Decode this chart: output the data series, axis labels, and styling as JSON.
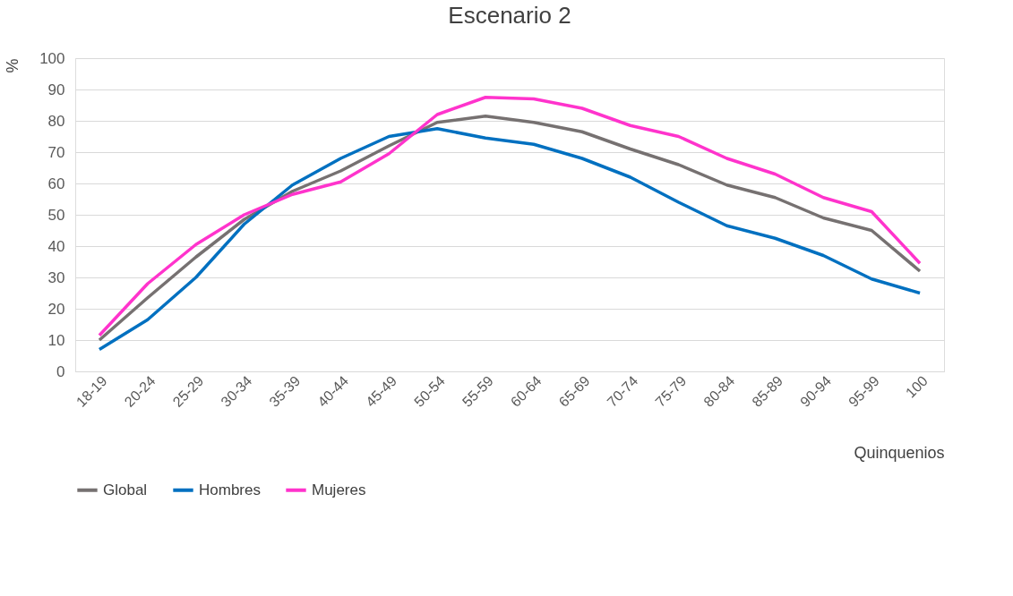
{
  "chart_data": {
    "type": "line",
    "title": "Escenario 2",
    "xlabel": "Quinquenios",
    "ylabel": "%",
    "categories": [
      "18-19",
      "20-24",
      "25-29",
      "30-34",
      "35-39",
      "40-44",
      "45-49",
      "50-54",
      "55-59",
      "60-64",
      "65-69",
      "70-74",
      "75-79",
      "80-84",
      "85-89",
      "90-94",
      "95-99",
      "100"
    ],
    "series": [
      {
        "name": "Global",
        "color": "#767171",
        "values": [
          10,
          23.5,
          36.5,
          48.5,
          57.5,
          64,
          72,
          79.5,
          81.5,
          79.5,
          76.5,
          71,
          66,
          59.5,
          55.5,
          49,
          45,
          32
        ]
      },
      {
        "name": "Hombres",
        "color": "#0070c0",
        "values": [
          7,
          16.5,
          30,
          47,
          59.5,
          68,
          75,
          77.5,
          74.5,
          72.5,
          68,
          62,
          54,
          46.5,
          42.5,
          37,
          29.5,
          25
        ]
      },
      {
        "name": "Mujeres",
        "color": "#ff33cc",
        "values": [
          11.5,
          28,
          40.5,
          50,
          56.5,
          60.5,
          69.5,
          82,
          87.5,
          87,
          84,
          78.5,
          75,
          68,
          63,
          55.5,
          51,
          34.5
        ]
      }
    ],
    "ylim": [
      0,
      100
    ],
    "yticks": [
      0,
      10,
      20,
      30,
      40,
      50,
      60,
      70,
      80,
      90,
      100
    ],
    "grid": "y",
    "legend": "bottom",
    "marker": "none",
    "line_style": "solid"
  }
}
